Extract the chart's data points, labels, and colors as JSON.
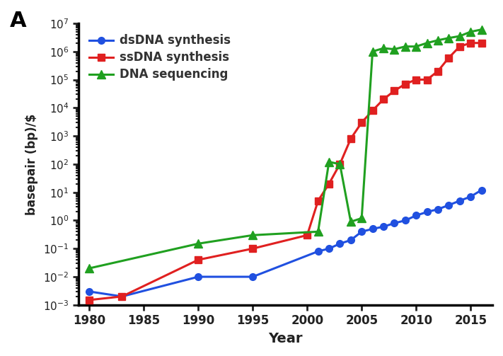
{
  "title_label": "A",
  "xlabel": "Year",
  "ylabel": "basepair (bp)/$",
  "xlim": [
    1979,
    2017
  ],
  "ylim_log": [
    -3,
    7
  ],
  "xticks": [
    1980,
    1985,
    1990,
    1995,
    2000,
    2005,
    2010,
    2015
  ],
  "bg_color": "#ffffff",
  "dsDNA": {
    "color": "#2050e0",
    "marker": "o",
    "label": "dsDNA synthesis",
    "x": [
      1980,
      1983,
      1990,
      1995,
      2001,
      2002,
      2003,
      2004,
      2005,
      2006,
      2007,
      2008,
      2009,
      2010,
      2011,
      2012,
      2013,
      2014,
      2015,
      2016
    ],
    "y": [
      0.003,
      0.002,
      0.01,
      0.01,
      0.08,
      0.1,
      0.15,
      0.2,
      0.4,
      0.5,
      0.6,
      0.8,
      1.0,
      1.5,
      2.0,
      2.5,
      3.5,
      5.0,
      7.0,
      12.0
    ]
  },
  "ssDNA": {
    "color": "#e02020",
    "marker": "s",
    "label": "ssDNA synthesis",
    "x": [
      1980,
      1983,
      1990,
      1995,
      2000,
      2001,
      2002,
      2003,
      2004,
      2005,
      2006,
      2007,
      2008,
      2009,
      2010,
      2011,
      2012,
      2013,
      2014,
      2015,
      2016
    ],
    "y": [
      0.0015,
      0.002,
      0.04,
      0.1,
      0.3,
      5.0,
      20.0,
      100.0,
      800.0,
      3000.0,
      8000.0,
      20000.0,
      40000.0,
      70000.0,
      100000.0,
      100000.0,
      200000.0,
      600000.0,
      1500000.0,
      2000000.0,
      2000000.0
    ]
  },
  "sequencing": {
    "color": "#20a020",
    "marker": "^",
    "label": "DNA sequencing",
    "x": [
      1980,
      1990,
      1995,
      2001,
      2002,
      2003,
      2004,
      2005,
      2006,
      2007,
      2008,
      2009,
      2010,
      2011,
      2012,
      2013,
      2014,
      2015,
      2016
    ],
    "y": [
      0.02,
      0.15,
      0.3,
      0.4,
      120.0,
      100.0,
      0.9,
      1.2,
      1000000.0,
      1300000.0,
      1200000.0,
      1500000.0,
      1500000.0,
      2000000.0,
      2500000.0,
      3000000.0,
      3500000.0,
      5000000.0,
      6000000.0
    ]
  }
}
